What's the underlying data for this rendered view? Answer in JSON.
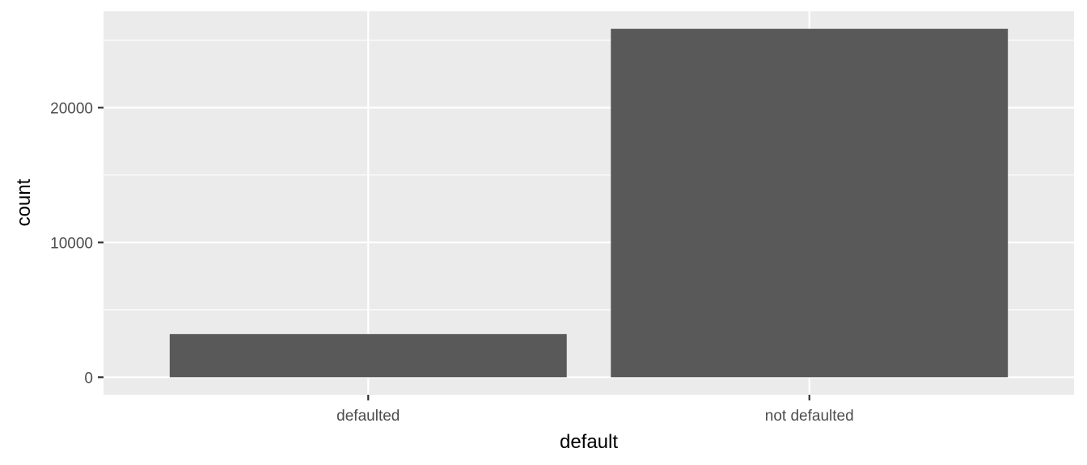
{
  "chart_data": {
    "type": "bar",
    "title": "",
    "xlabel": "default",
    "ylabel": "count",
    "categories": [
      "defaulted",
      "not defaulted"
    ],
    "values": [
      3200,
      25850
    ],
    "ylim": [
      -1300,
      27150
    ],
    "y_ticks": [
      0,
      10000,
      20000
    ],
    "y_tick_labels": [
      "0",
      "10000",
      "20000"
    ],
    "grid": true,
    "legend": "none",
    "colors": {
      "panel_background": "#ebebeb",
      "grid_line": "#ffffff",
      "bar_fill": "#595959",
      "tick_mark": "#333333"
    }
  }
}
